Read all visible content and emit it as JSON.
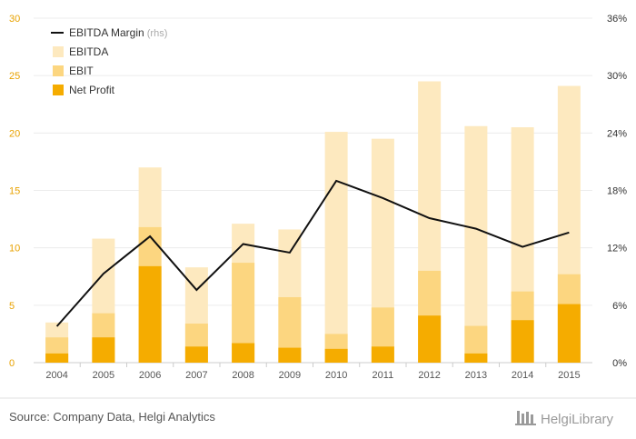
{
  "chart_data": {
    "type": "bar",
    "categories": [
      "2004",
      "2005",
      "2006",
      "2007",
      "2008",
      "2009",
      "2010",
      "2011",
      "2012",
      "2013",
      "2014",
      "2015"
    ],
    "series": [
      {
        "name": "EBITDA",
        "kind": "bar",
        "axis": "left",
        "color": "#fde9bf",
        "values": [
          3.5,
          10.8,
          17.0,
          8.3,
          12.1,
          11.6,
          20.1,
          19.5,
          24.5,
          20.6,
          20.5,
          24.1
        ]
      },
      {
        "name": "EBIT",
        "kind": "bar",
        "axis": "left",
        "color": "#fcd680",
        "values": [
          2.2,
          4.3,
          11.8,
          3.4,
          8.7,
          5.7,
          2.5,
          4.8,
          8.0,
          3.2,
          6.2,
          7.7
        ]
      },
      {
        "name": "Net Profit",
        "kind": "bar",
        "axis": "left",
        "color": "#f5ac00",
        "values": [
          0.8,
          2.2,
          8.4,
          1.4,
          1.7,
          1.3,
          1.2,
          1.4,
          4.1,
          0.8,
          3.7,
          5.1
        ]
      },
      {
        "name": "EBITDA Margin",
        "kind": "line",
        "axis": "right",
        "color": "#111111",
        "values": [
          3.8,
          9.3,
          13.2,
          7.6,
          12.4,
          11.5,
          19.0,
          17.2,
          15.1,
          14.0,
          12.1,
          13.6
        ]
      }
    ],
    "y_left": {
      "min": 0,
      "max": 30,
      "ticks": [
        0,
        5,
        10,
        15,
        20,
        25,
        30
      ]
    },
    "y_right": {
      "min": 0,
      "max": 36,
      "ticks": [
        "0%",
        "6%",
        "12%",
        "18%",
        "24%",
        "30%",
        "36%"
      ]
    },
    "grid": true,
    "legend": {
      "position": "top-left",
      "items": [
        {
          "label": "EBITDA Margin",
          "note": "(rhs)",
          "type": "line",
          "color": "#111111"
        },
        {
          "label": "EBITDA",
          "type": "box",
          "color": "#fde9bf"
        },
        {
          "label": "EBIT",
          "type": "box",
          "color": "#fcd680"
        },
        {
          "label": "Net Profit",
          "type": "box",
          "color": "#f5ac00"
        }
      ]
    }
  },
  "footer": {
    "source": "Source: Company Data, Helgi Analytics",
    "brand": "HelgiLibrary",
    "brand_icon": "library-bars-icon"
  }
}
